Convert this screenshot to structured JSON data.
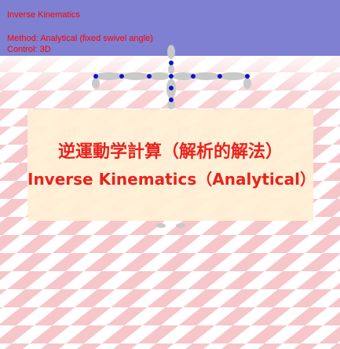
{
  "hud": {
    "title": "Inverse Kinematics",
    "method": "Method: Analytical (fixed swivel angle)",
    "control": "Control: 3D"
  },
  "caption": {
    "japanese": "逆運動学計算（解析的解法）",
    "english": "Inverse Kinematics（Analytical）"
  },
  "colors": {
    "sky": "#7f80d2",
    "floor_tile_red": "#f6c6ca",
    "floor_tile_white": "#ffffff",
    "hud_text": "#ff0000",
    "caption_background": "#ffefd6",
    "caption_text": "#e8231d",
    "bone": "#c9c9c9",
    "joint": "#0d17c8"
  },
  "icons": {
    "character": "stick-figure-skeleton",
    "joint": "blue-dot-joint"
  }
}
